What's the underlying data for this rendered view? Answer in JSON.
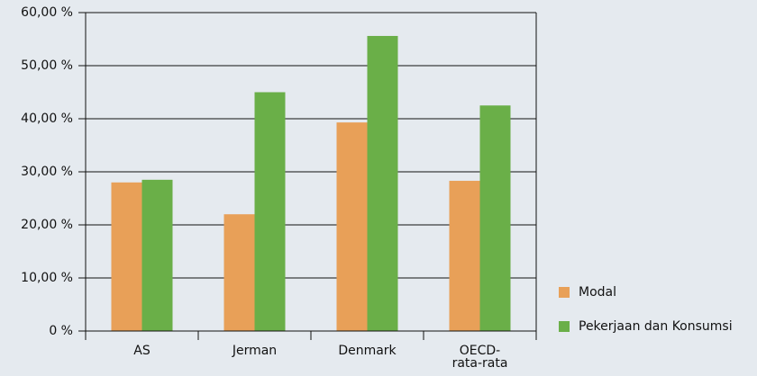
{
  "chart_data": {
    "type": "bar",
    "categories": [
      "AS",
      "Jerman",
      "Denmark",
      "OECD-\nrata-rata"
    ],
    "series": [
      {
        "name": "Modal",
        "color": "#e8a058",
        "values": [
          28,
          22,
          39.3,
          28.3
        ]
      },
      {
        "name": "Pekerjaan dan Konsumsi",
        "color": "#6aaf48",
        "values": [
          28.5,
          45,
          55.6,
          42.5
        ]
      }
    ],
    "ylim": [
      0,
      60
    ],
    "yticks": [
      {
        "value": 0,
        "label": "0 %"
      },
      {
        "value": 10,
        "label": "10,00 %"
      },
      {
        "value": 20,
        "label": "20,00 %"
      },
      {
        "value": 30,
        "label": "30,00 %"
      },
      {
        "value": 40,
        "label": "40,00 %"
      },
      {
        "value": 50,
        "label": "50,00 %"
      },
      {
        "value": 60,
        "label": "60,00 %"
      }
    ],
    "grid": true,
    "legend": "right"
  }
}
